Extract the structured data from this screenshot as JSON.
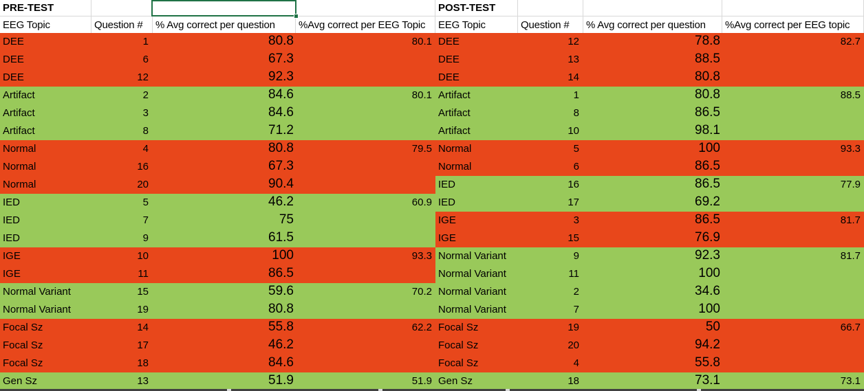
{
  "colors": {
    "red": "#E8471B",
    "green": "#99C95A",
    "grid": "#D8D8D8",
    "selection": "#1F7246",
    "dark_border": "#404040",
    "text": "#000000"
  },
  "pretest": {
    "title": "PRE-TEST",
    "headers": {
      "topic": "EEG Topic",
      "question": "Question #",
      "avg_question": "% Avg correct per question",
      "avg_topic": "%Avg correct per EEG Topic"
    },
    "rows": [
      {
        "topic": "DEE",
        "q": "1",
        "avg": "80.8",
        "group": "80.1",
        "fill": "red"
      },
      {
        "topic": "DEE",
        "q": "6",
        "avg": "67.3",
        "group": "",
        "fill": "red"
      },
      {
        "topic": "DEE",
        "q": "12",
        "avg": "92.3",
        "group": "",
        "fill": "red"
      },
      {
        "topic": "Artifact",
        "q": "2",
        "avg": "84.6",
        "group": "80.1",
        "fill": "green"
      },
      {
        "topic": "Artifact",
        "q": "3",
        "avg": "84.6",
        "group": "",
        "fill": "green"
      },
      {
        "topic": "Artifact",
        "q": "8",
        "avg": "71.2",
        "group": "",
        "fill": "green"
      },
      {
        "topic": "Normal",
        "q": "4",
        "avg": "80.8",
        "group": "79.5",
        "fill": "red"
      },
      {
        "topic": "Normal",
        "q": "16",
        "avg": "67.3",
        "group": "",
        "fill": "red"
      },
      {
        "topic": "Normal",
        "q": "20",
        "avg": "90.4",
        "group": "",
        "fill": "red"
      },
      {
        "topic": "IED",
        "q": "5",
        "avg": "46.2",
        "group": "60.9",
        "fill": "green"
      },
      {
        "topic": "IED",
        "q": "7",
        "avg": "75",
        "group": "",
        "fill": "green"
      },
      {
        "topic": "IED",
        "q": "9",
        "avg": "61.5",
        "group": "",
        "fill": "green"
      },
      {
        "topic": "IGE",
        "q": "10",
        "avg": "100",
        "group": "93.3",
        "fill": "red"
      },
      {
        "topic": "IGE",
        "q": "11",
        "avg": "86.5",
        "group": "",
        "fill": "red"
      },
      {
        "topic": "Normal Variant",
        "q": "15",
        "avg": "59.6",
        "group": "70.2",
        "fill": "green"
      },
      {
        "topic": "Normal Variant",
        "q": "19",
        "avg": "80.8",
        "group": "",
        "fill": "green"
      },
      {
        "topic": "Focal Sz",
        "q": "14",
        "avg": "55.8",
        "group": "62.2",
        "fill": "red"
      },
      {
        "topic": "Focal Sz",
        "q": "17",
        "avg": "46.2",
        "group": "",
        "fill": "red"
      },
      {
        "topic": "Focal Sz",
        "q": "18",
        "avg": "84.6",
        "group": "",
        "fill": "red"
      },
      {
        "topic": "Gen Sz",
        "q": "13",
        "avg": "51.9",
        "group": "51.9",
        "fill": "green"
      }
    ]
  },
  "posttest": {
    "title": "POST-TEST",
    "headers": {
      "topic": "EEG Topic",
      "question": "Question #",
      "avg_question": "% Avg correct per question",
      "avg_topic": "%Avg correct per EEG topic"
    },
    "rows": [
      {
        "topic": "DEE",
        "q": "12",
        "avg": "78.8",
        "group": "82.7",
        "fill": "red"
      },
      {
        "topic": "DEE",
        "q": "13",
        "avg": "88.5",
        "group": "",
        "fill": "red"
      },
      {
        "topic": "DEE",
        "q": "14",
        "avg": "80.8",
        "group": "",
        "fill": "red"
      },
      {
        "topic": "Artifact",
        "q": "1",
        "avg": "80.8",
        "group": "88.5",
        "fill": "green"
      },
      {
        "topic": "Artifact",
        "q": "8",
        "avg": "86.5",
        "group": "",
        "fill": "green"
      },
      {
        "topic": "Artifact",
        "q": "10",
        "avg": "98.1",
        "group": "",
        "fill": "green"
      },
      {
        "topic": "Normal",
        "q": "5",
        "avg": "100",
        "group": "93.3",
        "fill": "red"
      },
      {
        "topic": "Normal",
        "q": "6",
        "avg": "86.5",
        "group": "",
        "fill": "red"
      },
      {
        "topic": "IED",
        "q": "16",
        "avg": "86.5",
        "group": "77.9",
        "fill": "green"
      },
      {
        "topic": "IED",
        "q": "17",
        "avg": "69.2",
        "group": "",
        "fill": "green"
      },
      {
        "topic": "IGE",
        "q": "3",
        "avg": "86.5",
        "group": "81.7",
        "fill": "red"
      },
      {
        "topic": "IGE",
        "q": "15",
        "avg": "76.9",
        "group": "",
        "fill": "red"
      },
      {
        "topic": "Normal Variant",
        "q": "9",
        "avg": "92.3",
        "group": "81.7",
        "fill": "green"
      },
      {
        "topic": "Normal Variant",
        "q": "11",
        "avg": "100",
        "group": "",
        "fill": "green"
      },
      {
        "topic": "Normal Variant",
        "q": "2",
        "avg": "34.6",
        "group": "",
        "fill": "green"
      },
      {
        "topic": "Normal Variant",
        "q": "7",
        "avg": "100",
        "group": "",
        "fill": "green"
      },
      {
        "topic": "Focal Sz",
        "q": "19",
        "avg": "50",
        "group": "66.7",
        "fill": "red"
      },
      {
        "topic": "Focal Sz",
        "q": "20",
        "avg": "94.2",
        "group": "",
        "fill": "red"
      },
      {
        "topic": "Focal Sz",
        "q": "4",
        "avg": "55.8",
        "group": "",
        "fill": "red"
      },
      {
        "topic": "Gen Sz",
        "q": "18",
        "avg": "73.1",
        "group": "73.1",
        "fill": "green"
      }
    ]
  }
}
